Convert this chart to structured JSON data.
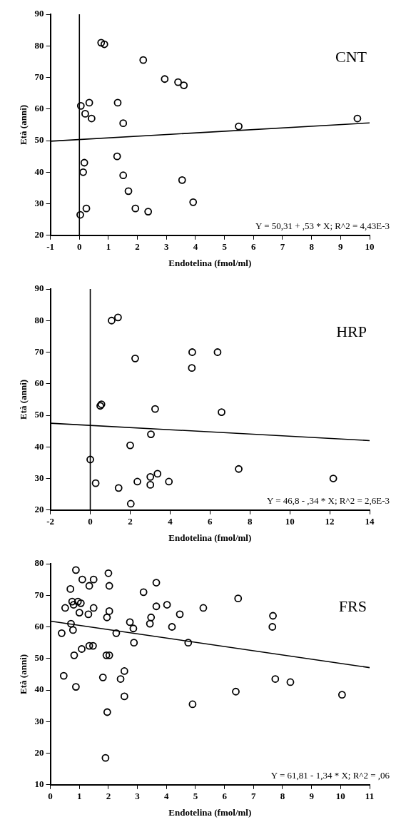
{
  "chart_data": [
    {
      "type": "scatter",
      "title": "CNT",
      "xlabel": "Endotelina (fmol/ml)",
      "ylabel": "Età (anni)",
      "annotations": [
        "Y = 50,31 + ,53 * X; R^2 = 4,43E-3"
      ],
      "xlim": [
        -1,
        10
      ],
      "xticks": [
        -1,
        0,
        1,
        2,
        3,
        4,
        5,
        6,
        7,
        8,
        9,
        10
      ],
      "ylim": [
        20,
        90
      ],
      "yticks": [
        20,
        30,
        40,
        50,
        60,
        70,
        80,
        90
      ],
      "grid": false,
      "legend": false,
      "ref_lines": [
        {
          "axis": "x",
          "value": 0,
          "color": "#000000"
        }
      ],
      "series": [
        {
          "type": "scatter",
          "marker": "circle",
          "color": "#000000",
          "x": [
            0.75,
            0.86,
            2.2,
            2.94,
            3.4,
            3.6,
            0.34,
            0.05,
            0.2,
            0.42,
            1.32,
            1.51,
            5.49,
            9.58,
            1.3,
            0.17,
            0.13,
            1.51,
            3.54,
            1.69,
            3.92,
            0.24,
            1.93,
            2.37,
            0.03
          ],
          "values": [
            81,
            80.5,
            75.5,
            69.5,
            68.5,
            67.5,
            62,
            61,
            58.5,
            57,
            62,
            55.5,
            54.5,
            57,
            45,
            43,
            40,
            39,
            37.5,
            34,
            30.5,
            28.5,
            28.5,
            27.5,
            26.5
          ]
        },
        {
          "type": "line",
          "color": "#000000",
          "x": [
            -1,
            10
          ],
          "values": [
            49.8,
            55.6
          ]
        }
      ]
    },
    {
      "type": "scatter",
      "title": "HRP",
      "xlabel": "Endotelina (fmol/ml)",
      "ylabel": "Età (anni)",
      "annotations": [
        "Y = 46,8 - ,34 * X; R^2 = 2,6E-3"
      ],
      "xlim": [
        -2,
        14
      ],
      "xticks": [
        -2,
        0,
        2,
        4,
        6,
        8,
        10,
        12,
        14
      ],
      "ylim": [
        20,
        90
      ],
      "yticks": [
        20,
        30,
        40,
        50,
        60,
        70,
        80,
        90
      ],
      "grid": false,
      "legend": false,
      "ref_lines": [
        {
          "axis": "x",
          "value": 0,
          "color": "#000000"
        }
      ],
      "series": [
        {
          "type": "scatter",
          "marker": "circle",
          "color": "#000000",
          "x": [
            1.07,
            1.39,
            2.25,
            5.11,
            6.38,
            5.09,
            0.5,
            0.56,
            3.25,
            6.58,
            3.04,
            2.0,
            0,
            7.44,
            3.37,
            3.01,
            12.18,
            2.36,
            3.94,
            3.01,
            0.27,
            1.42,
            2.03
          ],
          "values": [
            80,
            81,
            68,
            70,
            70,
            65,
            53,
            53.5,
            52,
            51,
            44,
            40.5,
            36,
            33,
            31.5,
            30.5,
            30,
            29,
            29,
            28,
            28.5,
            27,
            22
          ]
        },
        {
          "type": "line",
          "color": "#000000",
          "x": [
            -2,
            14
          ],
          "values": [
            47.5,
            42
          ]
        }
      ]
    },
    {
      "type": "scatter",
      "title": "FRS",
      "xlabel": "Endotelina (fmol/ml)",
      "ylabel": "Età (anni)",
      "annotations": [
        "Y = 61,81 - 1,34 * X; R^2 = ,06"
      ],
      "xlim": [
        0,
        11
      ],
      "xticks": [
        0,
        1,
        2,
        3,
        4,
        5,
        6,
        7,
        8,
        9,
        10,
        11
      ],
      "ylim": [
        10,
        80
      ],
      "yticks": [
        10,
        20,
        30,
        40,
        50,
        60,
        70,
        80
      ],
      "grid": false,
      "legend": false,
      "series": [
        {
          "type": "scatter",
          "marker": "circle",
          "color": "#000000",
          "x": [
            0.88,
            2.0,
            1.1,
            1.49,
            1.34,
            2.03,
            3.65,
            0.69,
            3.21,
            6.47,
            0.75,
            0.95,
            1.05,
            0.8,
            0.51,
            1.49,
            4.02,
            3.65,
            5.27,
            2.03,
            1.0,
            1.31,
            4.46,
            1.95,
            3.47,
            7.67,
            2.74,
            3.43,
            0.71,
            4.19,
            7.65,
            0.78,
            2.86,
            0.39,
            2.27,
            2.88,
            4.75,
            1.34,
            1.47,
            1.08,
            0.82,
            1.93,
            2.03,
            2.55,
            0.46,
            1.81,
            2.42,
            7.75,
            8.27,
            0.88,
            6.39,
            2.55,
            10.05,
            4.9,
            1.96,
            1.9
          ],
          "values": [
            78,
            77,
            75,
            75,
            73,
            73,
            74,
            72,
            71,
            69,
            68,
            68,
            67.5,
            67,
            66,
            66,
            67,
            66.5,
            66,
            65,
            64.5,
            64,
            64,
            63,
            63,
            63.5,
            61.5,
            61,
            61,
            60,
            60,
            59,
            59.5,
            58,
            58,
            55,
            55,
            54,
            54,
            53,
            51,
            51,
            51,
            46,
            44.5,
            44,
            43.5,
            43.5,
            42.5,
            41,
            39.5,
            38,
            38.5,
            35.5,
            33,
            18.5
          ]
        },
        {
          "type": "line",
          "color": "#000000",
          "x": [
            0,
            11
          ],
          "values": [
            61.8,
            47.1
          ]
        }
      ]
    }
  ]
}
